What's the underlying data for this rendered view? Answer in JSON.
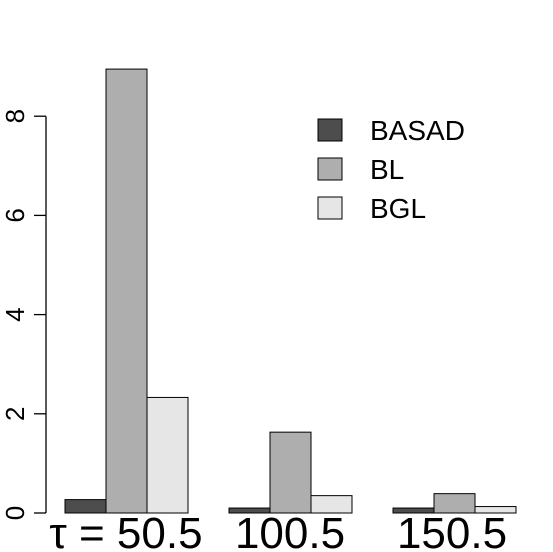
{
  "chart_data": {
    "type": "bar",
    "categories": [
      "τ = 50.5",
      "100.5",
      "150.5"
    ],
    "series": [
      {
        "name": "BASAD",
        "color": "#4d4d4d",
        "values": [
          0.27,
          0.1,
          0.1
        ]
      },
      {
        "name": "BL",
        "color": "#aeaeae",
        "values": [
          8.95,
          1.63,
          0.39
        ]
      },
      {
        "name": "BGL",
        "color": "#e6e6e6",
        "values": [
          2.33,
          0.35,
          0.13
        ]
      }
    ],
    "y_ticks": [
      "0",
      "2",
      "4",
      "6",
      "8"
    ],
    "ylim": [
      0,
      9.5
    ],
    "grid": false,
    "legend_position": "top-right",
    "title": "",
    "xlabel": "",
    "ylabel": ""
  }
}
